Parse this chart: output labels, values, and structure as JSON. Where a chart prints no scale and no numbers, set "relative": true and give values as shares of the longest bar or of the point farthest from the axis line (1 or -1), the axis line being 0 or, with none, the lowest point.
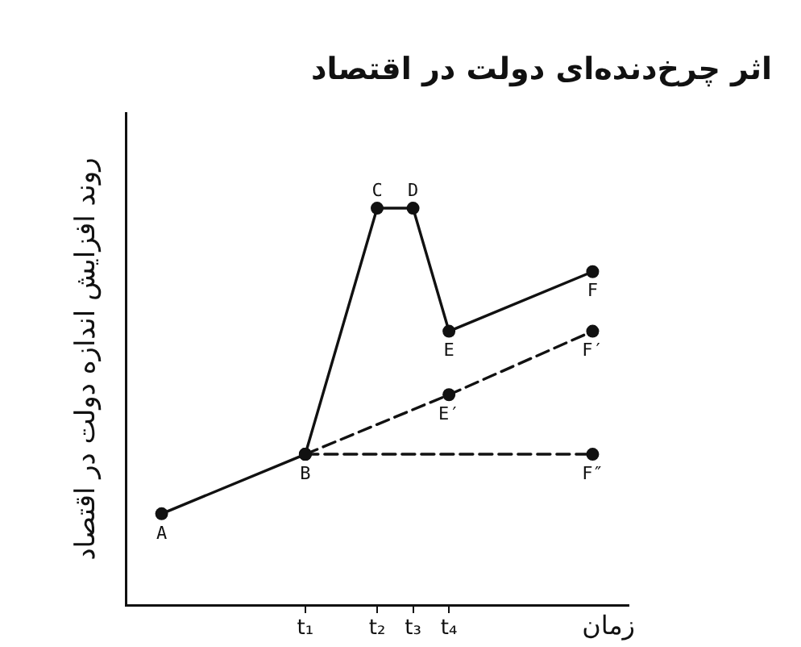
{
  "chart_data": {
    "type": "line",
    "title": "اثر چرخ‌دنده‌ای دولت در اقتصاد",
    "xlabel": "زمان",
    "ylabel": "روند افزایش اندازه دولت در اقتصاد",
    "relative": true,
    "marker": "circle",
    "categories": [
      null,
      null,
      null,
      null,
      null,
      "t₁",
      null,
      "t₂",
      "t₃",
      "t₄",
      null,
      null,
      null,
      null,
      null
    ],
    "series": [
      {
        "color": "#111111",
        "line_style": "solid",
        "values": [
          null,
          0.23,
          null,
          null,
          null,
          0.38,
          null,
          1,
          1,
          0.69,
          null,
          null,
          null,
          0.84,
          null
        ]
      },
      {
        "color": "#111111",
        "line_style": "dashed",
        "values": [
          null,
          null,
          null,
          null,
          null,
          0.38,
          null,
          null,
          null,
          0.53,
          null,
          null,
          null,
          0.69,
          null
        ]
      },
      {
        "color": "#111111",
        "line_style": "dashed",
        "values": [
          null,
          null,
          null,
          null,
          null,
          0.38,
          null,
          null,
          null,
          null,
          null,
          null,
          null,
          0.38,
          null
        ]
      }
    ],
    "annotations": [
      {
        "text": "A",
        "y": 0.23
      },
      {
        "text": "B",
        "x": "t₁",
        "y": 0.38
      },
      {
        "text": "C",
        "x": "t₂",
        "y": 1
      },
      {
        "text": "D",
        "x": "t₃",
        "y": 1
      },
      {
        "text": "E",
        "x": "t₄",
        "y": 0.69
      },
      {
        "text": "F",
        "y": 0.84
      },
      {
        "text": "E′",
        "x": "t₄",
        "y": 0.53
      },
      {
        "text": "F′",
        "y": 0.69
      },
      {
        "text": "F″",
        "y": 0.38
      }
    ]
  }
}
